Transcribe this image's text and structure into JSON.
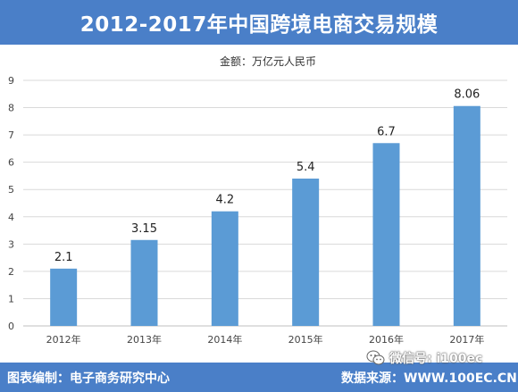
{
  "header": {
    "title": "2012-2017年中国跨境电商交易规模"
  },
  "footer": {
    "left_text": "图表编制：电子商务研究中心",
    "right_text": "数据来源：WWW.100EC.CN"
  },
  "watermark": {
    "text": "微信号: i100ec",
    "icon": "wechat-icon"
  },
  "colors": {
    "bar": "#5b9bd5",
    "header": "#4a7fc8",
    "grid": "#d9d9d9"
  },
  "chart_data": {
    "type": "bar",
    "unit_label": "金额：万亿元人民币",
    "categories": [
      "2012年",
      "2013年",
      "2014年",
      "2015年",
      "2016年",
      "2017年"
    ],
    "values": [
      2.1,
      3.15,
      4.2,
      5.4,
      6.7,
      8.06
    ],
    "data_labels": [
      "2.1",
      "3.15",
      "4.2",
      "5.4",
      "6.7",
      "8.06"
    ],
    "yticks": [
      "0",
      "1",
      "2",
      "3",
      "4",
      "5",
      "6",
      "7",
      "8",
      "9"
    ],
    "ylim": [
      0,
      9
    ],
    "grid": true,
    "legend": "none"
  }
}
